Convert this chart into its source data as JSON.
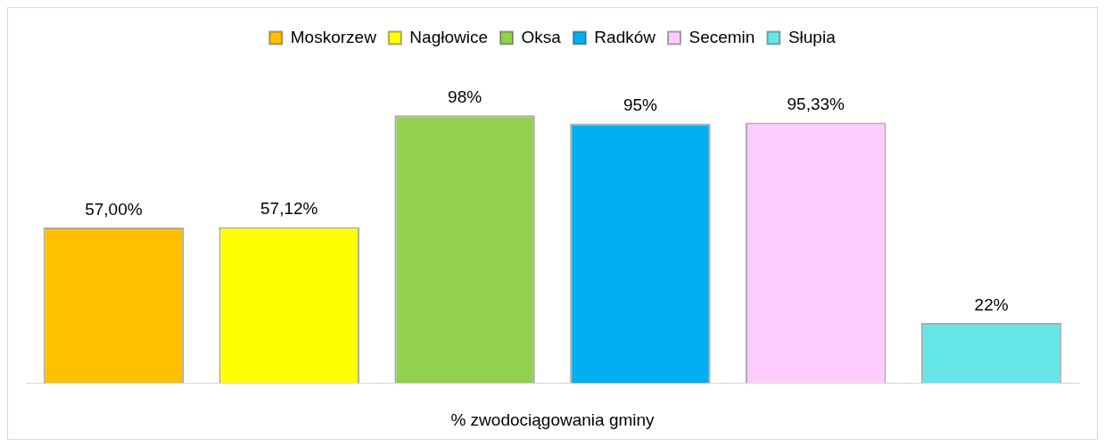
{
  "chart_data": {
    "type": "bar",
    "categories": [
      null,
      null,
      null,
      null,
      null,
      null
    ],
    "xlabel": "% zwodociągowania gminy",
    "legend": "top",
    "grid": false,
    "stacked": true,
    "series": [
      {
        "name": "Moskorzew",
        "color": "#ffc000",
        "values": [
          57,
          null,
          null,
          null,
          null,
          null
        ],
        "value_labels": [
          "57,00%",
          null,
          null,
          null,
          null,
          null
        ]
      },
      {
        "name": "Nagłowice",
        "color": "#ffff00",
        "values": [
          null,
          57.12,
          null,
          null,
          null,
          null
        ],
        "value_labels": [
          null,
          "57,12%",
          null,
          null,
          null,
          null
        ]
      },
      {
        "name": "Oksa",
        "color": "#92d050",
        "values": [
          null,
          null,
          98,
          null,
          null,
          null
        ],
        "value_labels": [
          null,
          null,
          "98%",
          null,
          null,
          null
        ]
      },
      {
        "name": "Radków",
        "color": "#00b0f0",
        "values": [
          null,
          null,
          null,
          95,
          null,
          null
        ],
        "value_labels": [
          null,
          null,
          null,
          "95%",
          null,
          null
        ]
      },
      {
        "name": "Secemin",
        "color": "#ffccff",
        "values": [
          null,
          null,
          null,
          null,
          95.33,
          null
        ],
        "value_labels": [
          null,
          null,
          null,
          null,
          "95,33%",
          null
        ]
      },
      {
        "name": "Słupia",
        "color": "#66e6e6",
        "values": [
          null,
          null,
          null,
          null,
          null,
          22
        ],
        "value_labels": [
          null,
          null,
          null,
          null,
          null,
          "22%"
        ]
      }
    ]
  }
}
